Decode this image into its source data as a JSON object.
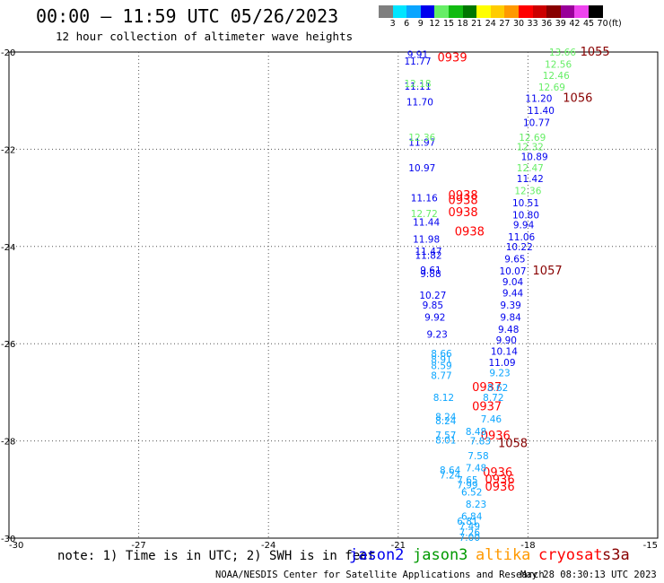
{
  "title": "00:00 – 11:59 UTC 05/26/2023",
  "subtitle": "12 hour collection of altimeter wave heights",
  "colorbar": {
    "unit": "(ft)",
    "entries": [
      {
        "label": "3",
        "color": "#7f7f7f"
      },
      {
        "label": "6",
        "color": "#00e5ff"
      },
      {
        "label": "9",
        "color": "#0aa5ff"
      },
      {
        "label": "12",
        "color": "#0000ee"
      },
      {
        "label": "15",
        "color": "#66ee66"
      },
      {
        "label": "18",
        "color": "#11bb11"
      },
      {
        "label": "21",
        "color": "#007700"
      },
      {
        "label": "24",
        "color": "#ffff00"
      },
      {
        "label": "27",
        "color": "#ffcc00"
      },
      {
        "label": "30",
        "color": "#ff9900"
      },
      {
        "label": "33",
        "color": "#ff0000"
      },
      {
        "label": "36",
        "color": "#cc0000"
      },
      {
        "label": "39",
        "color": "#880000"
      },
      {
        "label": "42",
        "color": "#990099"
      },
      {
        "label": "45",
        "color": "#ee44ee"
      },
      {
        "label": "70",
        "color": "#000000"
      }
    ]
  },
  "map": {
    "lon_range": [
      -30,
      -15
    ],
    "lat_range": [
      -30,
      -20
    ],
    "lon_ticks": [
      "-30",
      "-27",
      "-24",
      "-21",
      "-18",
      "-15"
    ],
    "lat_ticks": [
      "-20",
      "-22",
      "-24",
      "-26",
      "-28",
      "-30"
    ],
    "grid": "dotted"
  },
  "chart_data": {
    "type": "scatter",
    "xlabel": "",
    "ylabel": "",
    "xlim": [
      -30,
      -15
    ],
    "ylim": [
      -30,
      -20
    ],
    "series": [
      {
        "name": "jason2",
        "color": "#0000ee",
        "points": [
          {
            "lon": -20.55,
            "lat": -20.05,
            "label": "9.91"
          },
          {
            "lon": -20.55,
            "lat": -20.18,
            "label": "11.77"
          },
          {
            "lon": -20.55,
            "lat": -20.7,
            "label": "11.11"
          },
          {
            "lon": -20.5,
            "lat": -21.02,
            "label": "11.70"
          },
          {
            "lon": -20.45,
            "lat": -21.85,
            "label": "11.97"
          },
          {
            "lon": -20.45,
            "lat": -22.38,
            "label": "10.97"
          },
          {
            "lon": -20.4,
            "lat": -23.0,
            "label": "11.16"
          },
          {
            "lon": -20.35,
            "lat": -23.5,
            "label": "11.44"
          },
          {
            "lon": -20.35,
            "lat": -23.85,
            "label": "11.98"
          },
          {
            "lon": -20.3,
            "lat": -24.1,
            "label": "11.47"
          },
          {
            "lon": -20.3,
            "lat": -24.18,
            "label": "11.82"
          },
          {
            "lon": -20.25,
            "lat": -24.48,
            "label": "9.61"
          },
          {
            "lon": -20.25,
            "lat": -24.56,
            "label": "9.88"
          },
          {
            "lon": -20.2,
            "lat": -25.0,
            "label": "10.27"
          },
          {
            "lon": -20.2,
            "lat": -25.2,
            "label": "9.85"
          },
          {
            "lon": -20.15,
            "lat": -25.45,
            "label": "9.92"
          },
          {
            "lon": -20.1,
            "lat": -25.8,
            "label": "9.23"
          },
          {
            "lon": -17.75,
            "lat": -20.95,
            "label": "11.20"
          },
          {
            "lon": -17.7,
            "lat": -21.2,
            "label": "11.40"
          },
          {
            "lon": -17.8,
            "lat": -21.45,
            "label": "10.77"
          },
          {
            "lon": -17.85,
            "lat": -22.15,
            "label": "10.89"
          },
          {
            "lon": -17.95,
            "lat": -22.6,
            "label": "11.42"
          },
          {
            "lon": -18.05,
            "lat": -23.1,
            "label": "10.51"
          },
          {
            "lon": -18.05,
            "lat": -23.35,
            "label": "10.80"
          },
          {
            "lon": -18.1,
            "lat": -23.55,
            "label": "9.94"
          },
          {
            "lon": -18.15,
            "lat": -23.8,
            "label": "11.06"
          },
          {
            "lon": -18.2,
            "lat": -24.0,
            "label": "10.22"
          },
          {
            "lon": -18.3,
            "lat": -24.25,
            "label": "9.65"
          },
          {
            "lon": -18.35,
            "lat": -24.5,
            "label": "10.07"
          },
          {
            "lon": -18.35,
            "lat": -24.72,
            "label": "9.04"
          },
          {
            "lon": -18.35,
            "lat": -24.95,
            "label": "9.44"
          },
          {
            "lon": -18.4,
            "lat": -25.2,
            "label": "9.39"
          },
          {
            "lon": -18.4,
            "lat": -25.45,
            "label": "9.84"
          },
          {
            "lon": -18.45,
            "lat": -25.7,
            "label": "9.48"
          },
          {
            "lon": -18.5,
            "lat": -25.92,
            "label": "9.90"
          },
          {
            "lon": -18.55,
            "lat": -26.15,
            "label": "10.14"
          },
          {
            "lon": -18.6,
            "lat": -26.38,
            "label": "11.09"
          }
        ]
      },
      {
        "name": "jason3",
        "color": "#66ee66",
        "points": [
          {
            "lon": -17.2,
            "lat": -20.0,
            "label": "13.66"
          },
          {
            "lon": -17.3,
            "lat": -20.25,
            "label": "12.56"
          },
          {
            "lon": -17.35,
            "lat": -20.48,
            "label": "12.46"
          },
          {
            "lon": -17.45,
            "lat": -20.72,
            "label": "12.69"
          },
          {
            "lon": -20.55,
            "lat": -20.65,
            "label": "12.18"
          },
          {
            "lon": -20.45,
            "lat": -21.75,
            "label": "12.36"
          },
          {
            "lon": -17.9,
            "lat": -21.75,
            "label": "12.69"
          },
          {
            "lon": -17.95,
            "lat": -21.95,
            "label": "12.32"
          },
          {
            "lon": -17.95,
            "lat": -22.38,
            "label": "12.47"
          },
          {
            "lon": -18.0,
            "lat": -22.85,
            "label": "12.36"
          },
          {
            "lon": -20.4,
            "lat": -23.32,
            "label": "12.72"
          }
        ]
      },
      {
        "name": "cryosat",
        "color": "#ff0000",
        "points": [
          {
            "lon": -19.75,
            "lat": -20.12,
            "label": "0939"
          },
          {
            "lon": -19.5,
            "lat": -22.95,
            "label": "0938"
          },
          {
            "lon": -19.5,
            "lat": -23.05,
            "label": "0938"
          },
          {
            "lon": -19.5,
            "lat": -23.3,
            "label": "0938"
          },
          {
            "lon": -19.35,
            "lat": -23.7,
            "label": "0938"
          },
          {
            "lon": -18.95,
            "lat": -26.9,
            "label": "0937"
          },
          {
            "lon": -18.95,
            "lat": -27.3,
            "label": "0937"
          },
          {
            "lon": -18.75,
            "lat": -27.9,
            "label": "0936"
          },
          {
            "lon": -18.7,
            "lat": -28.65,
            "label": "0936"
          },
          {
            "lon": -18.65,
            "lat": -28.8,
            "label": "0936"
          },
          {
            "lon": -18.65,
            "lat": -28.95,
            "label": "0936"
          }
        ]
      },
      {
        "name": "s3a",
        "color": "#880000",
        "points": [
          {
            "lon": -16.45,
            "lat": -20.0,
            "label": "1055"
          },
          {
            "lon": -16.85,
            "lat": -20.95,
            "label": "1056"
          },
          {
            "lon": -17.55,
            "lat": -24.5,
            "label": "1057"
          },
          {
            "lon": -18.35,
            "lat": -28.05,
            "label": "1058"
          }
        ]
      },
      {
        "name": "other",
        "color": "#0aa5ff",
        "points": [
          {
            "lon": -20.0,
            "lat": -26.2,
            "label": "8.66"
          },
          {
            "lon": -20.0,
            "lat": -26.32,
            "label": "8.91"
          },
          {
            "lon": -20.0,
            "lat": -26.45,
            "label": "8.59"
          },
          {
            "lon": -20.0,
            "lat": -26.65,
            "label": "8.77"
          },
          {
            "lon": -18.65,
            "lat": -26.6,
            "label": "9.23"
          },
          {
            "lon": -18.7,
            "lat": -26.9,
            "label": "8.62"
          },
          {
            "lon": -18.8,
            "lat": -27.1,
            "label": "8.72"
          },
          {
            "lon": -19.95,
            "lat": -27.1,
            "label": "8.12"
          },
          {
            "lon": -19.9,
            "lat": -27.5,
            "label": "8.24"
          },
          {
            "lon": -19.9,
            "lat": -27.58,
            "label": "8.24"
          },
          {
            "lon": -18.85,
            "lat": -27.55,
            "label": "7.46"
          },
          {
            "lon": -19.2,
            "lat": -27.8,
            "label": "8.48"
          },
          {
            "lon": -19.9,
            "lat": -27.88,
            "label": "7.57"
          },
          {
            "lon": -19.9,
            "lat": -27.98,
            "label": "8.01"
          },
          {
            "lon": -19.1,
            "lat": -28.0,
            "label": "7.83"
          },
          {
            "lon": -19.15,
            "lat": -28.3,
            "label": "7.58"
          },
          {
            "lon": -19.2,
            "lat": -28.55,
            "label": "7.48"
          },
          {
            "lon": -19.8,
            "lat": -28.6,
            "label": "8.64"
          },
          {
            "lon": -19.8,
            "lat": -28.7,
            "label": "7.24"
          },
          {
            "lon": -19.4,
            "lat": -28.8,
            "label": "7.65"
          },
          {
            "lon": -19.4,
            "lat": -28.9,
            "label": "7.99"
          },
          {
            "lon": -19.3,
            "lat": -29.05,
            "label": "6.52"
          },
          {
            "lon": -19.2,
            "lat": -29.3,
            "label": "8.23"
          },
          {
            "lon": -19.3,
            "lat": -29.55,
            "label": "6.84"
          },
          {
            "lon": -19.4,
            "lat": -29.65,
            "label": "6.81"
          },
          {
            "lon": -19.35,
            "lat": -29.75,
            "label": "7.49"
          },
          {
            "lon": -19.35,
            "lat": -29.88,
            "label": "7.26"
          },
          {
            "lon": -19.35,
            "lat": -29.98,
            "label": "7.00"
          }
        ]
      }
    ]
  },
  "note": "note: 1) Time is in UTC; 2) SWH is in feet",
  "satellites": [
    {
      "name": "jason2",
      "color": "#0000ee"
    },
    {
      "name": "jason3",
      "color": "#009900"
    },
    {
      "name": "altika",
      "color": "#ff9900"
    },
    {
      "name": "cryosat",
      "color": "#ff0000"
    },
    {
      "name": "s3a",
      "color": "#880000"
    }
  ],
  "credit": "NOAA/NESDIS Center for Satellite Applications and Research",
  "timestamp": "May 28 08:30:13 UTC 2023"
}
